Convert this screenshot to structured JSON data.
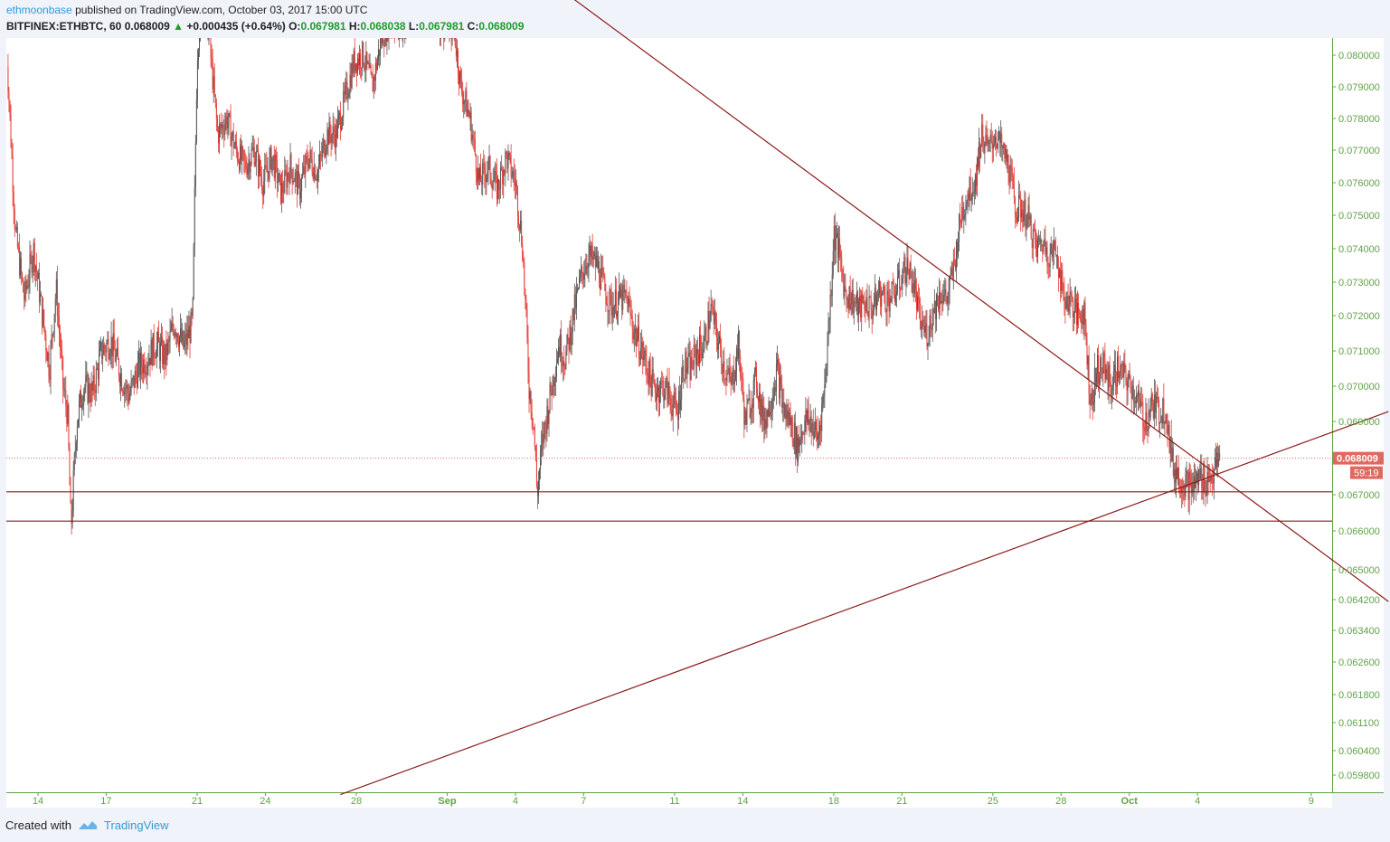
{
  "header": {
    "author": "ethmoonbase",
    "published_text": "published on TradingView.com, October 03, 2017 15:00 UTC",
    "symbol": "BITFINEX:ETHBTC, 60",
    "last": "0.068009",
    "change": "+0.000435 (+0.64%)",
    "o_label": "O:",
    "o_value": "0.067981",
    "h_label": "H:",
    "h_value": "0.068038",
    "l_label": "L:",
    "l_value": "0.067981",
    "c_label": "C:",
    "c_value": "0.068009"
  },
  "footer": {
    "created_with": "Created with",
    "brand": "TradingView"
  },
  "colors": {
    "axis_text": "#5fa247",
    "up_candle": "#555555",
    "down_candle": "#e53b35",
    "trendline": "#8b1a1a",
    "price_tag": "#e0695f",
    "background": "#ffffff"
  },
  "chart_data": {
    "type": "candlestick",
    "symbol": "BITFINEX:ETHBTC",
    "interval": "60",
    "price_axis_labels": [
      "0.080000",
      "0.079000",
      "0.078000",
      "0.077000",
      "0.076000",
      "0.075000",
      "0.074000",
      "0.073000",
      "0.072000",
      "0.071000",
      "0.070000",
      "0.069000",
      "0.067000",
      "0.066000",
      "0.065000",
      "0.064200",
      "0.063400",
      "0.062600",
      "0.061800",
      "0.061100",
      "0.060400",
      "0.059800"
    ],
    "last_price_tag": "0.068009",
    "countdown_tag": "59:19",
    "time_axis_labels": [
      "14",
      "17",
      "21",
      "24",
      "28",
      "Sep",
      "4",
      "7",
      "11",
      "14",
      "18",
      "21",
      "25",
      "28",
      "Oct",
      "4",
      "9"
    ],
    "time_axis_positions_days": [
      0,
      3,
      7,
      10,
      14,
      18,
      21,
      24,
      28,
      31,
      35,
      38,
      42,
      45,
      48,
      51,
      56
    ],
    "time_axis_origin": "2017-08-14",
    "price_path": [
      [
        -1.4,
        0.0805
      ],
      [
        -1.0,
        0.0745
      ],
      [
        -0.6,
        0.0725
      ],
      [
        -0.2,
        0.074
      ],
      [
        0.2,
        0.072
      ],
      [
        0.5,
        0.0705
      ],
      [
        0.8,
        0.0728
      ],
      [
        1.1,
        0.07
      ],
      [
        1.3,
        0.0692
      ],
      [
        1.45,
        0.066
      ],
      [
        1.7,
        0.069
      ],
      [
        2.0,
        0.07
      ],
      [
        2.4,
        0.0698
      ],
      [
        2.8,
        0.071
      ],
      [
        3.2,
        0.0713
      ],
      [
        3.6,
        0.0704
      ],
      [
        4.0,
        0.0697
      ],
      [
        4.4,
        0.0705
      ],
      [
        4.8,
        0.0708
      ],
      [
        5.2,
        0.0712
      ],
      [
        5.6,
        0.0708
      ],
      [
        6.0,
        0.0718
      ],
      [
        6.4,
        0.0711
      ],
      [
        6.8,
        0.0718
      ],
      [
        7.0,
        0.08
      ],
      [
        7.2,
        0.082
      ],
      [
        7.5,
        0.0808
      ],
      [
        7.9,
        0.0775
      ],
      [
        8.3,
        0.078
      ],
      [
        8.7,
        0.077
      ],
      [
        9.1,
        0.0765
      ],
      [
        9.5,
        0.077
      ],
      [
        9.9,
        0.076
      ],
      [
        10.3,
        0.0768
      ],
      [
        10.7,
        0.0757
      ],
      [
        11.1,
        0.0765
      ],
      [
        11.5,
        0.0758
      ],
      [
        11.9,
        0.0768
      ],
      [
        12.3,
        0.0763
      ],
      [
        12.7,
        0.0775
      ],
      [
        13.1,
        0.0775
      ],
      [
        13.5,
        0.0786
      ],
      [
        13.9,
        0.0798
      ],
      [
        14.3,
        0.08
      ],
      [
        14.7,
        0.079
      ],
      [
        15.1,
        0.0805
      ],
      [
        15.5,
        0.0812
      ],
      [
        15.9,
        0.0808
      ],
      [
        16.3,
        0.0812
      ],
      [
        16.6,
        0.082
      ],
      [
        17.0,
        0.0815
      ],
      [
        17.4,
        0.0818
      ],
      [
        17.7,
        0.081
      ],
      [
        18.0,
        0.081
      ],
      [
        18.3,
        0.0808
      ],
      [
        18.6,
        0.079
      ],
      [
        19.0,
        0.078
      ],
      [
        19.4,
        0.076
      ],
      [
        19.8,
        0.0765
      ],
      [
        20.2,
        0.0758
      ],
      [
        20.6,
        0.0768
      ],
      [
        21.0,
        0.076
      ],
      [
        21.3,
        0.0742
      ],
      [
        21.6,
        0.07
      ],
      [
        21.8,
        0.069
      ],
      [
        21.95,
        0.067
      ],
      [
        22.2,
        0.0685
      ],
      [
        22.6,
        0.07
      ],
      [
        22.9,
        0.0712
      ],
      [
        23.2,
        0.0708
      ],
      [
        23.6,
        0.0722
      ],
      [
        23.9,
        0.0732
      ],
      [
        24.2,
        0.0738
      ],
      [
        24.6,
        0.0735
      ],
      [
        24.9,
        0.0728
      ],
      [
        25.2,
        0.0723
      ],
      [
        25.6,
        0.0725
      ],
      [
        25.9,
        0.0725
      ],
      [
        26.2,
        0.0716
      ],
      [
        26.5,
        0.0711
      ],
      [
        26.8,
        0.0705
      ],
      [
        27.1,
        0.0699
      ],
      [
        27.5,
        0.07
      ],
      [
        27.8,
        0.0697
      ],
      [
        28.1,
        0.0692
      ],
      [
        28.4,
        0.0706
      ],
      [
        28.7,
        0.0705
      ],
      [
        29.0,
        0.071
      ],
      [
        29.3,
        0.0712
      ],
      [
        29.6,
        0.0722
      ],
      [
        29.9,
        0.0713
      ],
      [
        30.2,
        0.0705
      ],
      [
        30.5,
        0.07
      ],
      [
        30.8,
        0.0712
      ],
      [
        31.1,
        0.069
      ],
      [
        31.3,
        0.0695
      ],
      [
        31.6,
        0.0702
      ],
      [
        31.9,
        0.069
      ],
      [
        32.2,
        0.0695
      ],
      [
        32.5,
        0.0705
      ],
      [
        32.8,
        0.0693
      ],
      [
        33.1,
        0.069
      ],
      [
        33.4,
        0.0683
      ],
      [
        33.7,
        0.069
      ],
      [
        34.0,
        0.069
      ],
      [
        34.3,
        0.0685
      ],
      [
        34.6,
        0.07
      ],
      [
        34.9,
        0.073
      ],
      [
        35.0,
        0.0745
      ],
      [
        35.2,
        0.074
      ],
      [
        35.5,
        0.0727
      ],
      [
        35.8,
        0.0725
      ],
      [
        36.1,
        0.0722
      ],
      [
        36.4,
        0.0724
      ],
      [
        36.7,
        0.0722
      ],
      [
        37.0,
        0.0727
      ],
      [
        37.3,
        0.0725
      ],
      [
        37.6,
        0.0726
      ],
      [
        37.9,
        0.073
      ],
      [
        38.2,
        0.0735
      ],
      [
        38.5,
        0.073
      ],
      [
        38.8,
        0.0718
      ],
      [
        39.1,
        0.0715
      ],
      [
        39.4,
        0.0722
      ],
      [
        39.7,
        0.0727
      ],
      [
        40.0,
        0.0725
      ],
      [
        40.3,
        0.0735
      ],
      [
        40.6,
        0.075
      ],
      [
        40.9,
        0.0757
      ],
      [
        41.2,
        0.076
      ],
      [
        41.5,
        0.0775
      ],
      [
        41.8,
        0.077
      ],
      [
        42.1,
        0.0775
      ],
      [
        42.4,
        0.077
      ],
      [
        42.7,
        0.0765
      ],
      [
        43.0,
        0.0752
      ],
      [
        43.3,
        0.0752
      ],
      [
        43.6,
        0.0748
      ],
      [
        43.9,
        0.074
      ],
      [
        44.2,
        0.0742
      ],
      [
        44.5,
        0.0738
      ],
      [
        44.8,
        0.074
      ],
      [
        45.1,
        0.0725
      ],
      [
        45.4,
        0.0725
      ],
      [
        45.7,
        0.072
      ],
      [
        46.0,
        0.0722
      ],
      [
        46.3,
        0.0695
      ],
      [
        46.6,
        0.0705
      ],
      [
        46.9,
        0.0705
      ],
      [
        47.2,
        0.07
      ],
      [
        47.5,
        0.0705
      ],
      [
        47.8,
        0.0702
      ],
      [
        48.1,
        0.07
      ],
      [
        48.4,
        0.0695
      ],
      [
        48.7,
        0.069
      ],
      [
        49.0,
        0.0695
      ],
      [
        49.3,
        0.0693
      ],
      [
        49.6,
        0.0694
      ],
      [
        49.9,
        0.0678
      ],
      [
        50.2,
        0.0675
      ],
      [
        50.5,
        0.0673
      ],
      [
        50.8,
        0.0672
      ],
      [
        51.1,
        0.0675
      ],
      [
        51.4,
        0.0674
      ],
      [
        51.7,
        0.0676
      ],
      [
        52.0,
        0.068
      ]
    ],
    "horizontal_levels": [
      0.06708,
      0.06627
    ],
    "trendlines": [
      {
        "from": [
          22.1,
          0.08255
        ],
        "to": [
          59.4,
          0.06415
        ]
      },
      {
        "from": [
          13.3,
          0.05932
        ],
        "to": [
          59.4,
          0.06928
        ]
      }
    ]
  }
}
